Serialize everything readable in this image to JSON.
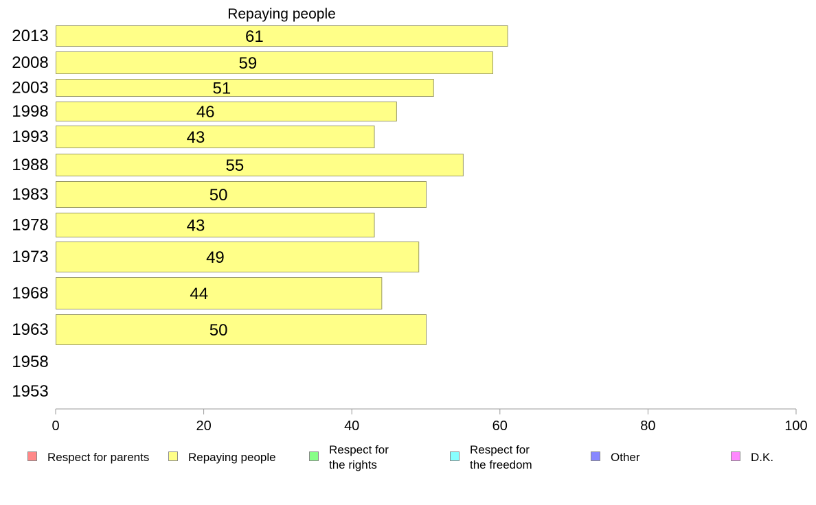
{
  "chart_data": {
    "type": "bar",
    "orientation": "horizontal",
    "title": "Repaying people",
    "categories": [
      "2013",
      "2008",
      "2003",
      "1998",
      "1993",
      "1988",
      "1983",
      "1978",
      "1973",
      "1968",
      "1963",
      "1958",
      "1953"
    ],
    "series": [
      {
        "name": "Repaying people",
        "values": [
          61,
          59,
          51,
          46,
          43,
          55,
          50,
          43,
          49,
          44,
          50,
          null,
          null
        ],
        "labels": [
          "61",
          "59",
          "51",
          "46",
          "43",
          "55",
          "50",
          "43",
          "49",
          "44",
          "50",
          "",
          ""
        ]
      }
    ],
    "xlim": [
      0,
      100
    ],
    "xticks": [
      0,
      20,
      40,
      60,
      80,
      100
    ],
    "xtick_labels": [
      "0",
      "20",
      "40",
      "60",
      "80",
      "100"
    ],
    "grid": false,
    "legend_position": "bottom",
    "legend": [
      {
        "lines": [
          "Respect for parents"
        ],
        "color": "#ff8888"
      },
      {
        "lines": [
          "Repaying people"
        ],
        "color": "#ffff88"
      },
      {
        "lines": [
          "Respect for",
          "the rights"
        ],
        "color": "#88ff88"
      },
      {
        "lines": [
          "Respect for",
          "the freedom"
        ],
        "color": "#88ffff"
      },
      {
        "lines": [
          "Other"
        ],
        "color": "#8888ff"
      },
      {
        "lines": [
          "D.K."
        ],
        "color": "#ff88ff"
      }
    ],
    "bar_color": "#ffff88",
    "bar_stroke": "#999966",
    "axis_color": "#999999"
  }
}
